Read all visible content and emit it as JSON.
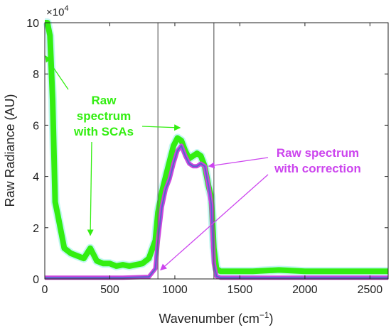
{
  "chart_data": {
    "type": "line",
    "title": "",
    "xlabel_main": "Wavenumber (cm",
    "xlabel_sup": "−1",
    "xlabel_close": ")",
    "ylabel": "Raw Radiance (AU)",
    "y_multiplier": "×10",
    "y_multiplier_exp": "4",
    "xlim": [
      0,
      2640
    ],
    "ylim": [
      0,
      10
    ],
    "x_ticks": [
      0,
      500,
      1000,
      1500,
      2000,
      2500
    ],
    "y_ticks": [
      0,
      2,
      4,
      6,
      8,
      10
    ],
    "vlines": [
      870,
      1300
    ],
    "colors": {
      "raw": "#33ee11",
      "raw_halo": "#8ef0e6",
      "corrected": "#cc44dd",
      "corrected_core": "#5566cc",
      "vline": "#666666",
      "raw_annotation": "#33ee11",
      "corrected_annotation": "#cc44ee"
    },
    "series": [
      {
        "name": "Raw spectrum with SCAs",
        "x": [
          0,
          20,
          40,
          60,
          80,
          100,
          150,
          200,
          250,
          300,
          350,
          400,
          450,
          500,
          550,
          600,
          650,
          700,
          750,
          800,
          850,
          870,
          900,
          930,
          960,
          990,
          1020,
          1050,
          1080,
          1110,
          1140,
          1170,
          1200,
          1230,
          1260,
          1280,
          1300,
          1320,
          1350,
          1400,
          1500,
          1600,
          1800,
          2000,
          2200,
          2400,
          2640
        ],
        "y": [
          10,
          10,
          9.5,
          7,
          3,
          2.5,
          1.2,
          1.0,
          0.9,
          0.8,
          1.2,
          0.7,
          0.6,
          0.6,
          0.5,
          0.55,
          0.5,
          0.55,
          0.6,
          0.8,
          1.5,
          2.6,
          3.4,
          4.0,
          4.6,
          5.2,
          5.5,
          5.4,
          5.0,
          4.7,
          4.8,
          4.9,
          4.8,
          4.4,
          3.6,
          3.2,
          1.2,
          0.4,
          0.3,
          0.3,
          0.3,
          0.3,
          0.35,
          0.3,
          0.3,
          0.3,
          0.3
        ]
      },
      {
        "name": "Raw spectrum with correction",
        "x": [
          0,
          200,
          400,
          600,
          800,
          850,
          870,
          900,
          930,
          960,
          990,
          1020,
          1050,
          1080,
          1110,
          1140,
          1170,
          1200,
          1230,
          1260,
          1280,
          1300,
          1320,
          1350,
          1400,
          1600,
          2000,
          2400,
          2640
        ],
        "y": [
          0.05,
          0.05,
          0.05,
          0.05,
          0.08,
          0.4,
          1.5,
          2.8,
          3.5,
          3.9,
          4.5,
          5.0,
          5.2,
          4.8,
          4.5,
          4.4,
          4.4,
          4.5,
          4.4,
          3.6,
          2.9,
          0.6,
          0.1,
          0.05,
          0.05,
          0.05,
          0.05,
          0.05,
          0.05
        ]
      }
    ],
    "annotations": [
      {
        "lines": [
          "Raw",
          "spectrum",
          "with SCAs"
        ],
        "targets": [
          [
            5,
            8.7
          ],
          [
            1040,
            5.9
          ],
          [
            350,
            1.7
          ]
        ]
      },
      {
        "lines": [
          "Raw spectrum",
          "with correction"
        ],
        "targets": [
          [
            1260,
            4.4
          ],
          [
            890,
            0.35
          ]
        ]
      }
    ]
  }
}
